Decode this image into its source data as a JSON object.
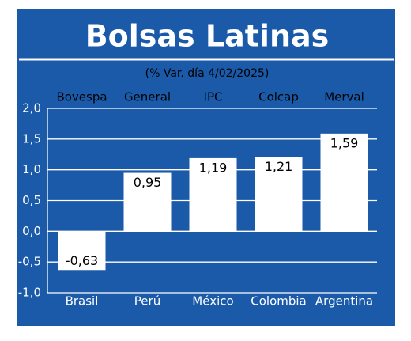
{
  "chart_data": {
    "type": "bar",
    "title": "Bolsas Latinas",
    "subtitle": "(% Var. día 4/02/2025)",
    "categories": [
      "Brasil",
      "Perú",
      "México",
      "Colombia",
      "Argentina"
    ],
    "indices": [
      "Bovespa",
      "General",
      "IPC",
      "Colcap",
      "Merval"
    ],
    "values": [
      -0.63,
      0.95,
      1.19,
      1.21,
      1.59
    ],
    "value_labels": [
      "-0,63",
      "0,95",
      "1,19",
      "1,21",
      "1,59"
    ],
    "color": "#ffffff",
    "ylim": [
      -1.0,
      2.0
    ],
    "yticks": [
      {
        "value": -1.0,
        "label": "-1,0"
      },
      {
        "value": -0.5,
        "label": "-0,5"
      },
      {
        "value": 0.0,
        "label": "0,0"
      },
      {
        "value": 0.5,
        "label": "0,5"
      },
      {
        "value": 1.0,
        "label": "1,0"
      },
      {
        "value": 1.5,
        "label": "1,5"
      },
      {
        "value": 2.0,
        "label": "2,0"
      }
    ],
    "grid": true
  }
}
